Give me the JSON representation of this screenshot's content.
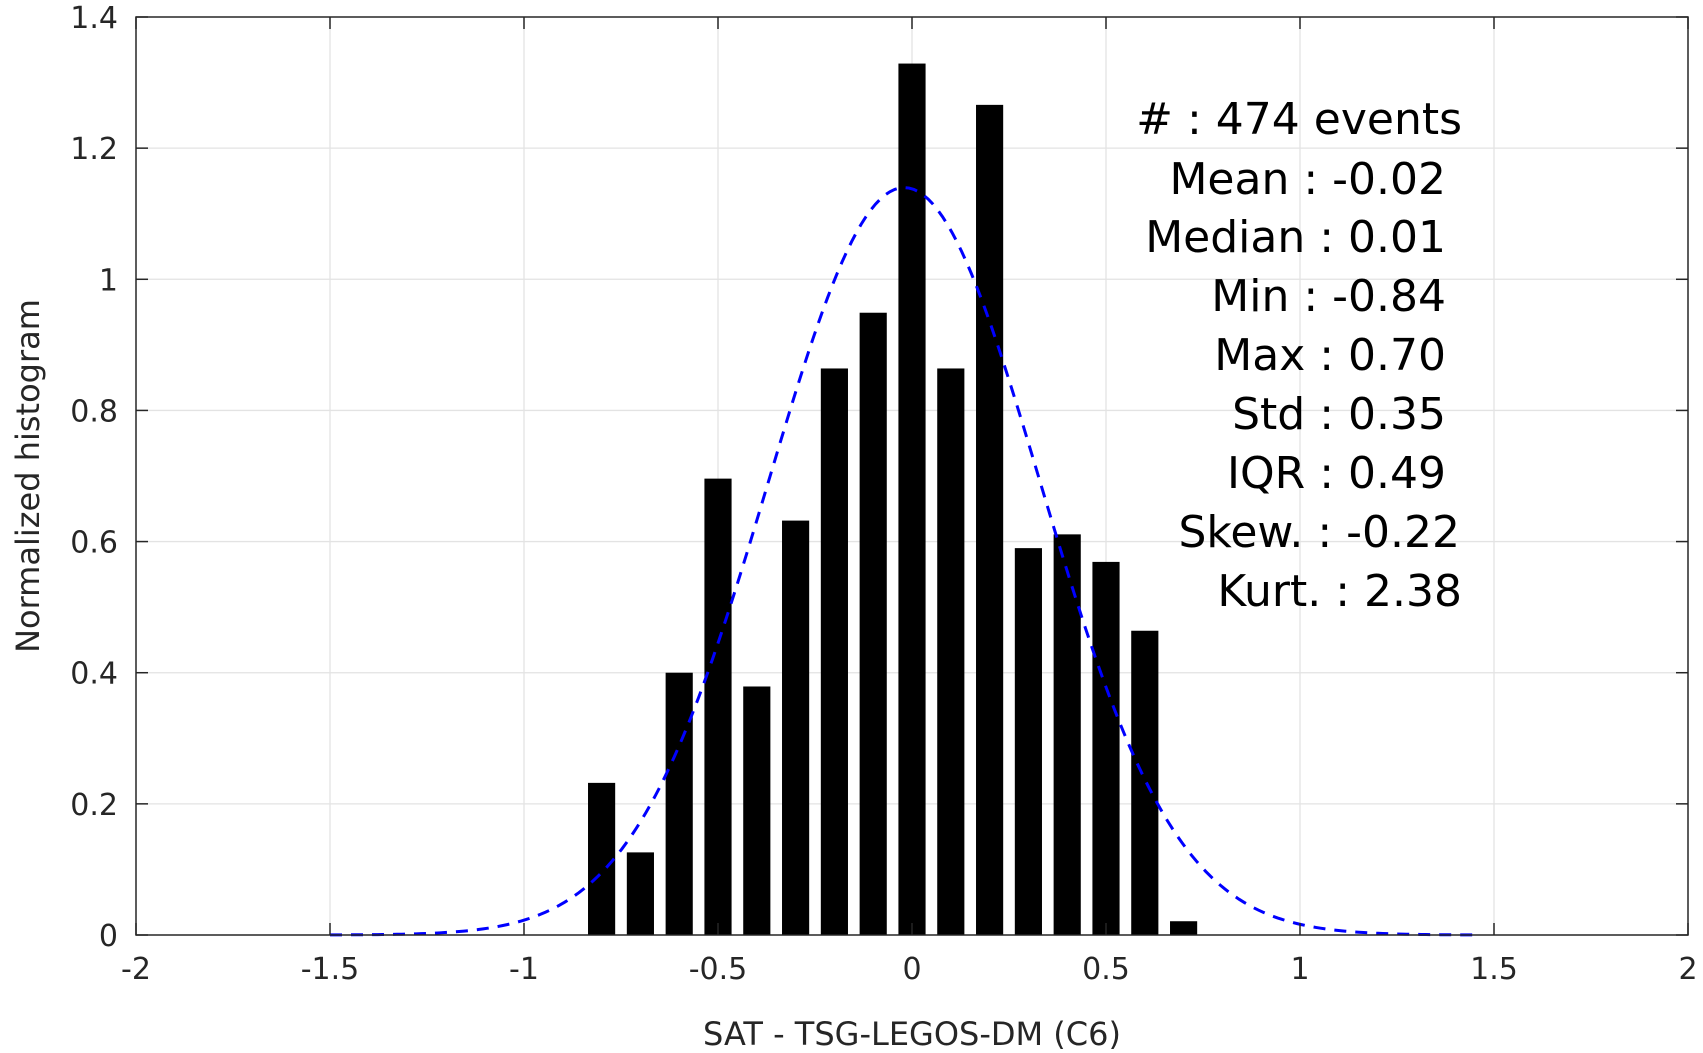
{
  "chart_data": {
    "type": "bar",
    "title": "",
    "xlabel": "SAT - TSG-LEGOS-DM (C6)",
    "ylabel": "Normalized histogram",
    "xlim": [
      -2,
      2
    ],
    "ylim": [
      0,
      1.4
    ],
    "xticks": [
      -2,
      -1.5,
      -1,
      -0.5,
      0,
      0.5,
      1,
      1.5,
      2
    ],
    "xtick_labels": [
      "-2",
      "-1.5",
      "-1",
      "-0.5",
      "0",
      "0.5",
      "1",
      "1.5",
      "2"
    ],
    "yticks": [
      0,
      0.2,
      0.4,
      0.6,
      0.8,
      1,
      1.2,
      1.4
    ],
    "ytick_labels": [
      "0",
      "0.2",
      "0.4",
      "0.6",
      "0.8",
      "1",
      "1.2",
      "1.4"
    ],
    "grid": true,
    "bar_color": "#000000",
    "bin_width": 0.1,
    "bars": [
      {
        "x": -0.8,
        "y": 0.232
      },
      {
        "x": -0.7,
        "y": 0.126
      },
      {
        "x": -0.6,
        "y": 0.4
      },
      {
        "x": -0.5,
        "y": 0.696
      },
      {
        "x": -0.4,
        "y": 0.379
      },
      {
        "x": -0.3,
        "y": 0.632
      },
      {
        "x": -0.2,
        "y": 0.864
      },
      {
        "x": -0.1,
        "y": 0.949
      },
      {
        "x": 0.0,
        "y": 1.329
      },
      {
        "x": 0.1,
        "y": 0.864
      },
      {
        "x": 0.2,
        "y": 1.266
      },
      {
        "x": 0.3,
        "y": 0.59
      },
      {
        "x": 0.4,
        "y": 0.611
      },
      {
        "x": 0.5,
        "y": 0.569
      },
      {
        "x": 0.6,
        "y": 0.464
      },
      {
        "x": 0.7,
        "y": 0.021
      }
    ],
    "fit_curve": {
      "style": "dashed",
      "color": "#0000ff",
      "mean": -0.02,
      "std": 0.35,
      "x_range": [
        -1.5,
        1.46
      ]
    },
    "annotations": [
      "#  : 474 events",
      "Mean : -0.02",
      "Median : 0.01",
      "Min : -0.84",
      "Max : 0.70",
      "Std : 0.35",
      "IQR : 0.49",
      "Skew. : -0.22",
      "Kurt. : 2.38"
    ]
  }
}
